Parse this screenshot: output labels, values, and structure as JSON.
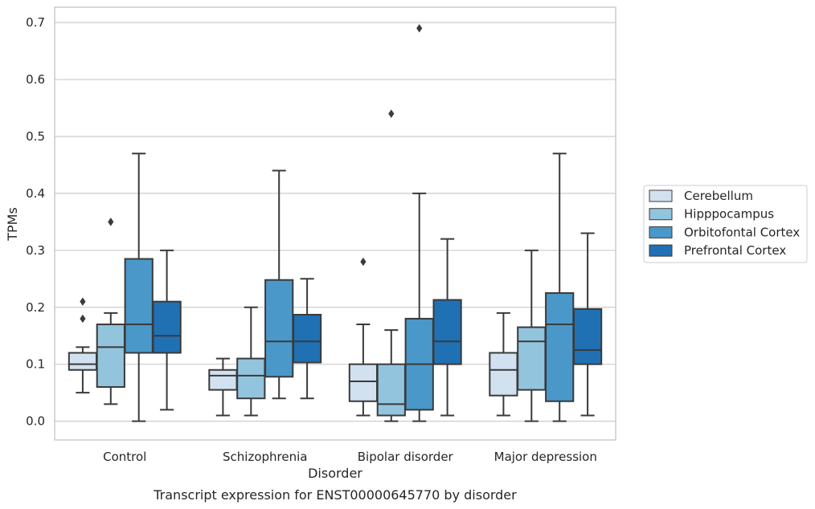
{
  "chart_data": {
    "type": "box",
    "title": "",
    "caption": "Transcript expression for ENST00000645770 by disorder",
    "xlabel": "Disorder",
    "ylabel": "TPMs",
    "ylim": [
      -0.033,
      0.727
    ],
    "yticks": [
      "0.0",
      "0.1",
      "0.2",
      "0.3",
      "0.4",
      "0.5",
      "0.6",
      "0.7"
    ],
    "ytick_values": [
      0,
      0.1,
      0.2,
      0.3,
      0.4,
      0.5,
      0.6,
      0.7
    ],
    "grid": "horizontal",
    "legend_position": "right",
    "categories": [
      "Control",
      "Schizophrenia",
      "Bipolar disorder",
      "Major depression"
    ],
    "series": [
      {
        "name": "Cerebellum",
        "color": "#d1e1f0",
        "boxes": [
          {
            "whislo": 0.05,
            "q1": 0.09,
            "med": 0.1,
            "q3": 0.12,
            "whishi": 0.13,
            "fliers": [
              0.18,
              0.21
            ]
          },
          {
            "whislo": 0.01,
            "q1": 0.055,
            "med": 0.08,
            "q3": 0.09,
            "whishi": 0.11,
            "fliers": []
          },
          {
            "whislo": 0.01,
            "q1": 0.035,
            "med": 0.07,
            "q3": 0.1,
            "whishi": 0.17,
            "fliers": [
              0.28
            ]
          },
          {
            "whislo": 0.01,
            "q1": 0.045,
            "med": 0.09,
            "q3": 0.12,
            "whishi": 0.19,
            "fliers": []
          }
        ]
      },
      {
        "name": "Hipppocampus",
        "color": "#93c4de",
        "boxes": [
          {
            "whislo": 0.03,
            "q1": 0.06,
            "med": 0.13,
            "q3": 0.17,
            "whishi": 0.19,
            "fliers": [
              0.35
            ]
          },
          {
            "whislo": 0.01,
            "q1": 0.04,
            "med": 0.08,
            "q3": 0.11,
            "whishi": 0.2,
            "fliers": []
          },
          {
            "whislo": 0.0,
            "q1": 0.01,
            "med": 0.03,
            "q3": 0.1,
            "whishi": 0.16,
            "fliers": [
              0.54
            ]
          },
          {
            "whislo": 0.0,
            "q1": 0.055,
            "med": 0.14,
            "q3": 0.165,
            "whishi": 0.3,
            "fliers": []
          }
        ]
      },
      {
        "name": "Orbitofontal Cortex",
        "color": "#4a98c9",
        "boxes": [
          {
            "whislo": 0.0,
            "q1": 0.12,
            "med": 0.17,
            "q3": 0.285,
            "whishi": 0.47,
            "fliers": []
          },
          {
            "whislo": 0.04,
            "q1": 0.078,
            "med": 0.14,
            "q3": 0.248,
            "whishi": 0.44,
            "fliers": []
          },
          {
            "whislo": 0.0,
            "q1": 0.02,
            "med": 0.1,
            "q3": 0.18,
            "whishi": 0.4,
            "fliers": [
              0.69
            ]
          },
          {
            "whislo": 0.0,
            "q1": 0.035,
            "med": 0.17,
            "q3": 0.225,
            "whishi": 0.47,
            "fliers": []
          }
        ]
      },
      {
        "name": "Prefrontal Cortex",
        "color": "#2070b4",
        "boxes": [
          {
            "whislo": 0.02,
            "q1": 0.12,
            "med": 0.15,
            "q3": 0.21,
            "whishi": 0.3,
            "fliers": []
          },
          {
            "whislo": 0.04,
            "q1": 0.103,
            "med": 0.14,
            "q3": 0.187,
            "whishi": 0.25,
            "fliers": []
          },
          {
            "whislo": 0.01,
            "q1": 0.1,
            "med": 0.14,
            "q3": 0.213,
            "whishi": 0.32,
            "fliers": []
          },
          {
            "whislo": 0.01,
            "q1": 0.1,
            "med": 0.125,
            "q3": 0.197,
            "whishi": 0.33,
            "fliers": []
          }
        ]
      }
    ]
  }
}
